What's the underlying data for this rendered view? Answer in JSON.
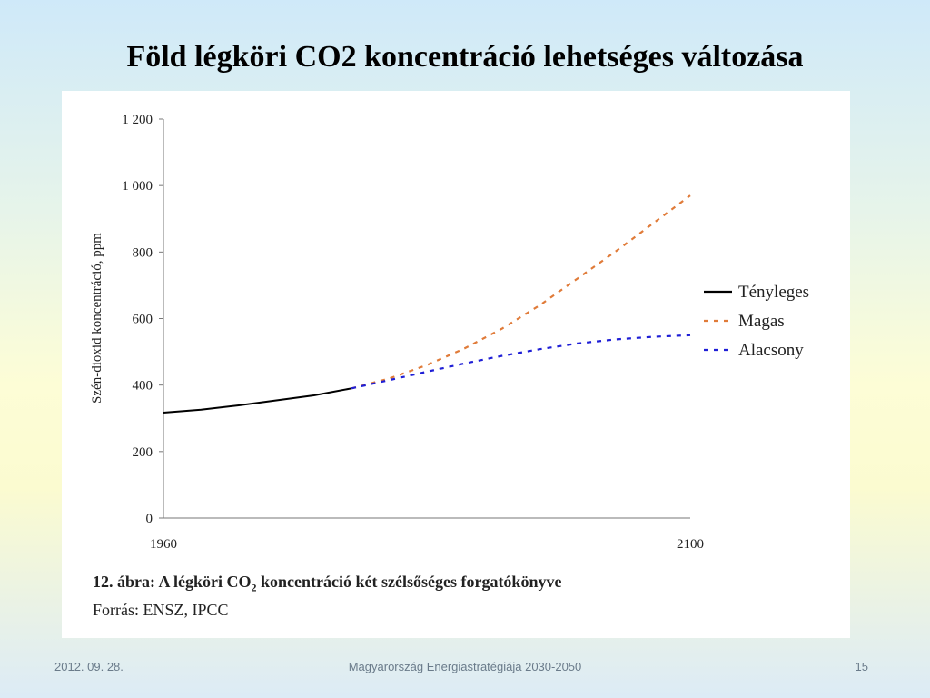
{
  "slide": {
    "title": "Föld légköri CO2 koncentráció lehetséges változása",
    "footer": {
      "date": "2012. 09. 28.",
      "center": "Magyarország Energiastratégiája 2030-2050",
      "page": "15"
    }
  },
  "caption": {
    "label_pre": "12. ábra: A légköri CO",
    "label_sub": "2",
    "label_post": " koncentráció két szélsőséges forgatókönyve",
    "source": "Forrás: ENSZ, IPCC"
  },
  "chart_data": {
    "type": "line",
    "title": "",
    "xlabel": "",
    "ylabel": "Szén-dioxid koncentráció, ppm",
    "xlim": [
      1960,
      2100
    ],
    "ylim": [
      0,
      1200
    ],
    "x_tick_labels": [
      "1960",
      "2100"
    ],
    "y_ticks": [
      0,
      200,
      400,
      600,
      800,
      1000,
      1200
    ],
    "y_tick_labels": [
      "0",
      "200",
      "400",
      "600",
      "800",
      "1 000",
      "1 200"
    ],
    "legend_position": "right",
    "series": [
      {
        "name": "Tényleges",
        "color": "#000000",
        "style": "solid",
        "x": [
          1960,
          1970,
          1980,
          1990,
          2000,
          2010
        ],
        "y": [
          317,
          326,
          339,
          354,
          369,
          390
        ]
      },
      {
        "name": "Magas",
        "color": "#e07b39",
        "style": "dashed",
        "x": [
          2010,
          2020,
          2030,
          2040,
          2050,
          2060,
          2070,
          2080,
          2090,
          2100
        ],
        "y": [
          390,
          420,
          460,
          510,
          570,
          640,
          720,
          800,
          885,
          970
        ]
      },
      {
        "name": "Alacsony",
        "color": "#1f1fd6",
        "style": "dashed",
        "x": [
          2010,
          2020,
          2030,
          2040,
          2050,
          2060,
          2070,
          2080,
          2090,
          2100
        ],
        "y": [
          390,
          415,
          440,
          465,
          488,
          508,
          525,
          537,
          545,
          550
        ]
      }
    ]
  }
}
